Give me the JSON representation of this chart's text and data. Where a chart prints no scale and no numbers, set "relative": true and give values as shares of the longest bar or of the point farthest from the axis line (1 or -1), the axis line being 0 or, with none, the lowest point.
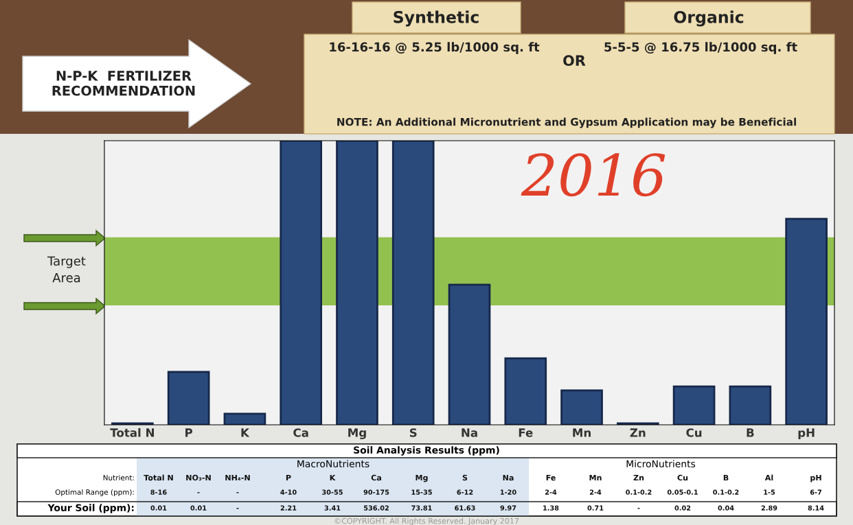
{
  "chart_data": {
    "type": "bar",
    "relative": true,
    "title": "N-P-K  FERTILIZER\nRECOMMENDATION",
    "categories": [
      "Total N",
      "P",
      "K",
      "Ca",
      "Mg",
      "S",
      "Na",
      "Fe",
      "Mn",
      "Zn",
      "Cu",
      "B",
      "pH"
    ],
    "values": [
      0.005,
      0.186,
      0.039,
      1,
      1,
      1,
      0.493,
      0.234,
      0.121,
      0.005,
      0.135,
      0.135,
      0.725
    ],
    "color": "#2b4a7c",
    "bands": [
      {
        "axis": "y",
        "from": 0.42,
        "to": 0.66,
        "color": "#93c150"
      }
    ],
    "annotations": [
      "Synthetic",
      "Organic",
      "16-16-16 @ 5.25 lb/1000 sq. ft",
      "OR",
      "5-5-5 @ 16.75 lb/1000 sq. ft",
      "NOTE: An Additional Micronutrient and Gypsum Application may be Beneficial",
      "Target\nArea",
      "2016",
      "Soil Analysis Results (ppm)",
      "MacroNutrients",
      "MicroNutrients",
      "Nutrient:",
      "Total N",
      "NO₃-N",
      "NH₄-N",
      "P",
      "K",
      "Ca",
      "Mg",
      "S",
      "Na",
      "Fe",
      "Mn",
      "Zn",
      "Cu",
      "B",
      "Al",
      "pH",
      "Optimal Range (ppm):",
      "8-16",
      "-",
      "-",
      "4-10",
      "30-55",
      "90-175",
      "15-35",
      "6-12",
      "1-20",
      "2-4",
      "2-4",
      "0.1-0.2",
      "0.05-0.1",
      "0.1-0.2",
      "1-5",
      "6-7",
      "Your Soil (ppm):",
      "0.01",
      "0.01",
      "-",
      "2.21",
      "3.41",
      "536.02",
      "73.81",
      "61.63",
      "9.97",
      "1.38",
      "0.71",
      "-",
      "0.02",
      "0.04",
      "2.89",
      "8.14",
      "©COPYRIGHT. All Rights Reserved. January 2017"
    ]
  }
}
